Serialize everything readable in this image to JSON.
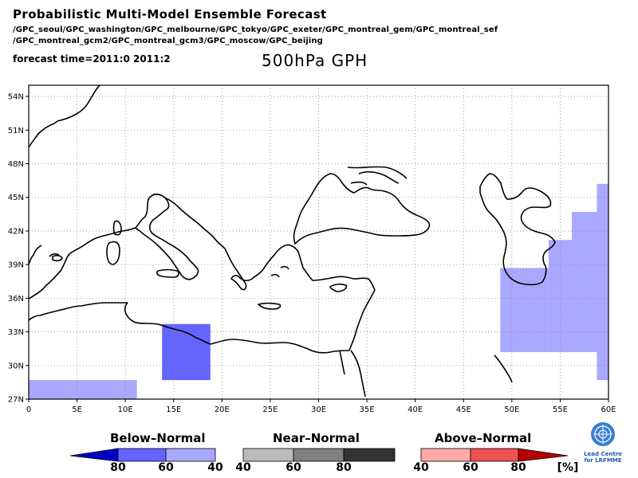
{
  "header": {
    "title": "Probabilistic Multi-Model Ensemble Forecast",
    "models_line1": "/GPC_seoul/GPC_washington/GPC_melbourne/GPC_tokyo/GPC_exeter/GPC_montreal_gem/GPC_montreal_sef",
    "models_line2": "/GPC_montreal_gcm2/GPC_montreal_gcm3/GPC_moscow/GPC_beijing",
    "forecast_time": "forecast time=2011:0 2011:2",
    "variable": "500hPa GPH"
  },
  "map": {
    "lon_range": [
      0,
      60
    ],
    "lat_range": [
      27,
      55
    ],
    "lat_ticks": [
      "54N",
      "51N",
      "48N",
      "45N",
      "42N",
      "39N",
      "36N",
      "33N",
      "30N",
      "27N"
    ],
    "lon_ticks": [
      "0",
      "5E",
      "10E",
      "15E",
      "20E",
      "25E",
      "30E",
      "35E",
      "40E",
      "45E",
      "50E",
      "55E",
      "60E"
    ],
    "grid": true,
    "colors": {
      "below_80": "#0000c8",
      "below_60": "#6464ff",
      "below_40": "#a8a8ff"
    },
    "regions": [
      {
        "category": "below_40",
        "lon": [
          0,
          11.2
        ],
        "lat": [
          27,
          28.7
        ]
      },
      {
        "category": "below_60",
        "lon": [
          13.8,
          18.8
        ],
        "lat": [
          28.7,
          33.7
        ]
      },
      {
        "category": "below_40",
        "lon": [
          48.8,
          53.8
        ],
        "lat": [
          31.2,
          38.7
        ]
      },
      {
        "category": "below_40",
        "lon": [
          53.8,
          56.2
        ],
        "lat": [
          31.2,
          41.2
        ]
      },
      {
        "category": "below_40",
        "lon": [
          56.2,
          58.8
        ],
        "lat": [
          31.2,
          43.7
        ]
      },
      {
        "category": "below_40",
        "lon": [
          58.8,
          60
        ],
        "lat": [
          28.7,
          46.2
        ]
      }
    ]
  },
  "legend": {
    "below": {
      "title": "Below–Normal",
      "labels": [
        "80",
        "60",
        "40"
      ],
      "colors": [
        "#0000c8",
        "#6464ff",
        "#a8a8ff"
      ]
    },
    "near": {
      "title": "Near–Normal",
      "labels": [
        "40",
        "60",
        "80"
      ],
      "colors": [
        "#bbbbbb",
        "#808080",
        "#333333"
      ]
    },
    "above": {
      "title": "Above–Normal",
      "labels": [
        "40",
        "60",
        "80"
      ],
      "colors": [
        "#ffa8a8",
        "#f05050",
        "#b40000"
      ]
    },
    "unit": "[%]"
  },
  "logo": {
    "line1": "Lead Centre",
    "line2": "for LRFMME"
  }
}
